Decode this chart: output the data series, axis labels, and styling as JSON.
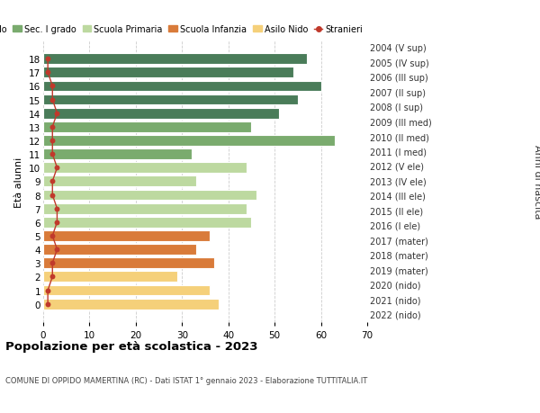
{
  "ages": [
    18,
    17,
    16,
    15,
    14,
    13,
    12,
    11,
    10,
    9,
    8,
    7,
    6,
    5,
    4,
    3,
    2,
    1,
    0
  ],
  "right_labels": [
    "2004 (V sup)",
    "2005 (IV sup)",
    "2006 (III sup)",
    "2007 (II sup)",
    "2008 (I sup)",
    "2009 (III med)",
    "2010 (II med)",
    "2011 (I med)",
    "2012 (V ele)",
    "2013 (IV ele)",
    "2014 (III ele)",
    "2015 (II ele)",
    "2016 (I ele)",
    "2017 (mater)",
    "2018 (mater)",
    "2019 (mater)",
    "2020 (nido)",
    "2021 (nido)",
    "2022 (nido)"
  ],
  "bar_values": [
    57,
    54,
    60,
    55,
    51,
    45,
    63,
    32,
    44,
    33,
    46,
    44,
    45,
    36,
    33,
    37,
    29,
    36,
    38
  ],
  "bar_colors": [
    "#4a7c59",
    "#4a7c59",
    "#4a7c59",
    "#4a7c59",
    "#4a7c59",
    "#7aab6e",
    "#7aab6e",
    "#7aab6e",
    "#bdd9a0",
    "#bdd9a0",
    "#bdd9a0",
    "#bdd9a0",
    "#bdd9a0",
    "#d97b3a",
    "#d97b3a",
    "#d97b3a",
    "#f5d07a",
    "#f5d07a",
    "#f5d07a"
  ],
  "stranieri_values": [
    1,
    1,
    2,
    2,
    3,
    2,
    2,
    2,
    3,
    2,
    2,
    3,
    3,
    2,
    3,
    2,
    2,
    1,
    1
  ],
  "stranieri_color": "#c0392b",
  "legend_labels": [
    "Sec. II grado",
    "Sec. I grado",
    "Scuola Primaria",
    "Scuola Infanzia",
    "Asilo Nido",
    "Stranieri"
  ],
  "legend_colors": [
    "#4a7c59",
    "#7aab6e",
    "#bdd9a0",
    "#d97b3a",
    "#f5d07a",
    "#c0392b"
  ],
  "title": "Popolazione per età scolastica - 2023",
  "subtitle": "COMUNE DI OPPIDO MAMERTINA (RC) - Dati ISTAT 1° gennaio 2023 - Elaborazione TUTTITALIA.IT",
  "ylabel_left": "Età alunni",
  "ylabel_right": "Anni di nascita",
  "xlim": [
    0,
    70
  ],
  "xticks": [
    0,
    10,
    20,
    30,
    40,
    50,
    60,
    70
  ],
  "bar_height": 0.78,
  "background_color": "#ffffff",
  "grid_color": "#cccccc"
}
